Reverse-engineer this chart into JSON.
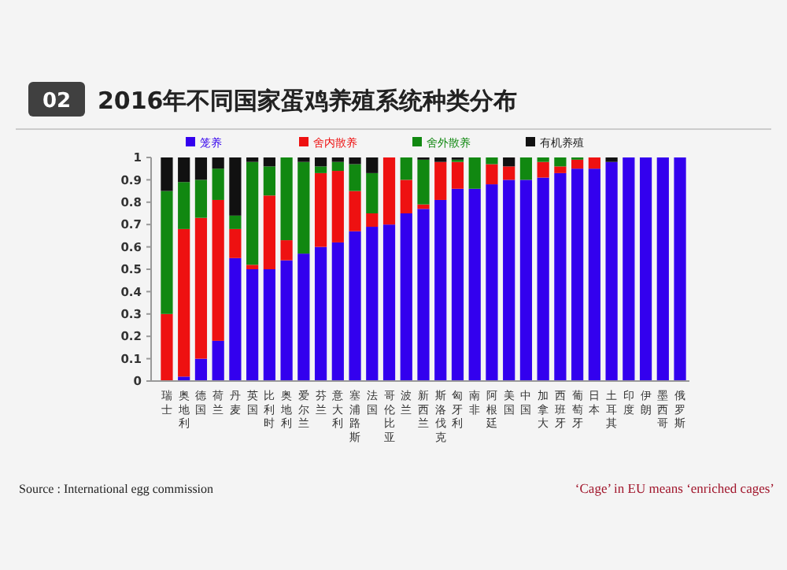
{
  "chart_data": {
    "type": "bar",
    "stacked": true,
    "title": "2016年不同国家蛋鸡养殖系统种类分布",
    "annotations": [
      "02",
      "Source : International egg commission",
      "‘Cage’ in EU means ‘enriched cages’"
    ],
    "categories": [
      "瑞士",
      "奥地利",
      "德国",
      "荷兰",
      "丹麦",
      "英国",
      "比利时",
      "奥地利",
      "爱尔兰",
      "芬兰",
      "意大利",
      "塞浦路斯",
      "法国",
      "哥伦比亚",
      "波兰",
      "新西兰",
      "斯洛伐克",
      "匈牙利",
      "南非",
      "阿根廷",
      "美国",
      "中国",
      "加拿大",
      "西班牙",
      "葡萄牙",
      "日本",
      "土耳其",
      "印度",
      "伊朗",
      "墨西哥",
      "俄罗斯"
    ],
    "series": [
      {
        "name": "笼养",
        "color": "#3300ee",
        "values": [
          0,
          0.02,
          0.1,
          0.18,
          0.55,
          0.5,
          0.5,
          0.54,
          0.57,
          0.6,
          0.62,
          0.67,
          0.69,
          0.7,
          0.75,
          0.77,
          0.81,
          0.86,
          0.86,
          0.88,
          0.9,
          0.9,
          0.91,
          0.93,
          0.95,
          0.95,
          0.98,
          1,
          1,
          1,
          1
        ]
      },
      {
        "name": "舍内散养",
        "color": "#ee1111",
        "values": [
          0.3,
          0.66,
          0.63,
          0.63,
          0.13,
          0.02,
          0.33,
          0.09,
          0,
          0.33,
          0.32,
          0.18,
          0.06,
          0.3,
          0.15,
          0.02,
          0.17,
          0.12,
          0,
          0.09,
          0.06,
          0,
          0.07,
          0.03,
          0.04,
          0.05,
          0,
          0,
          0,
          0,
          0
        ]
      },
      {
        "name": "舍外散养",
        "color": "#118811",
        "values": [
          0.55,
          0.21,
          0.17,
          0.14,
          0.06,
          0.46,
          0.13,
          0.37,
          0.41,
          0.03,
          0.04,
          0.12,
          0.18,
          0,
          0.1,
          0.2,
          0,
          0.01,
          0.14,
          0.03,
          0,
          0.1,
          0.02,
          0.04,
          0.01,
          0,
          0,
          0,
          0,
          0,
          0
        ]
      },
      {
        "name": "有机养殖",
        "color": "#111111",
        "values": [
          0.15,
          0.11,
          0.1,
          0.05,
          0.26,
          0.02,
          0.04,
          0,
          0.02,
          0.04,
          0.02,
          0.03,
          0.07,
          0,
          0,
          0.01,
          0.02,
          0.01,
          0,
          0,
          0.04,
          0,
          0,
          0,
          0,
          0,
          0.02,
          0,
          0,
          0,
          0
        ]
      }
    ],
    "ylim": [
      0,
      1
    ],
    "yticks": [
      0,
      {
        "value": 0.1,
        "label": "0.1"
      },
      {
        "value": 0.2,
        "label": "0.2"
      },
      {
        "value": 0.3,
        "label": "0.3"
      },
      {
        "value": 0.4,
        "label": "0.4"
      },
      {
        "value": 0.5,
        "label": "0.5"
      },
      {
        "value": 0.6,
        "label": "0.6"
      },
      {
        "value": 0.7,
        "label": "0.7"
      },
      {
        "value": 0.8,
        "label": "0.8"
      },
      {
        "value": 0.9,
        "label": "0.9"
      },
      1
    ],
    "legend": "top"
  }
}
